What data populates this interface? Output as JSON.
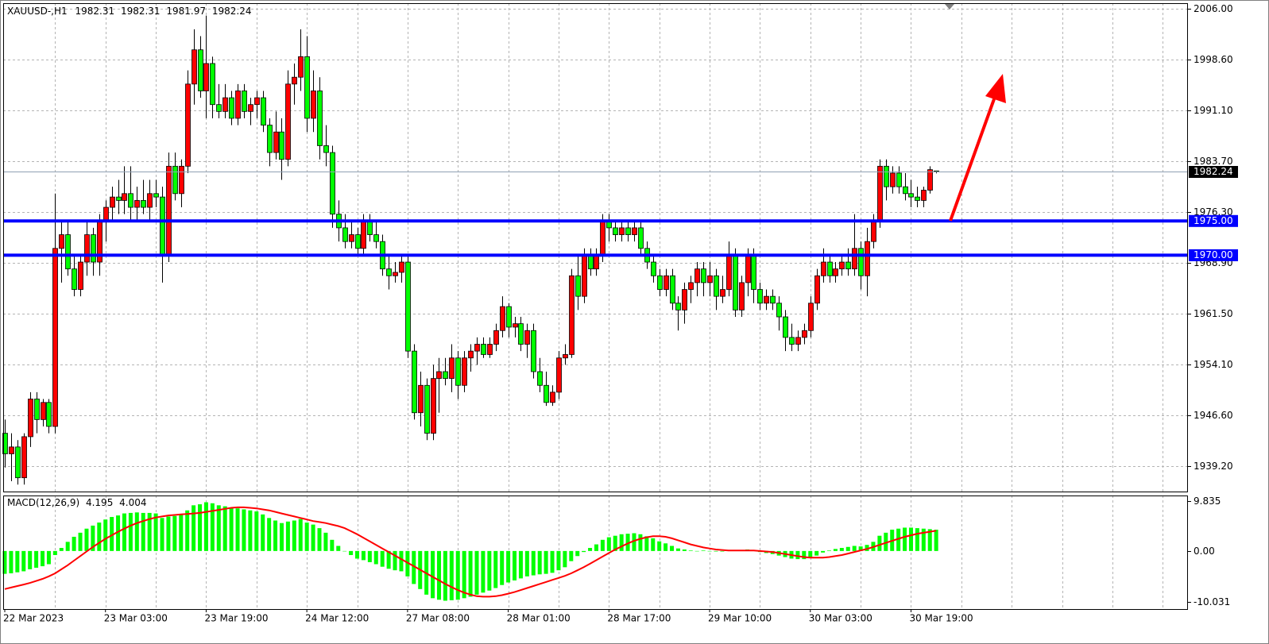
{
  "chart_data": {
    "type": "candlestick",
    "symbol_label": "XAUUSD-,H1",
    "up_color": "#ff0000",
    "down_color": "#00ff00",
    "grid": true,
    "ylim": [
      1935.49,
      2006.81
    ],
    "yticks": [
      {
        "value": 2006,
        "label": "2006.00"
      },
      {
        "value": 1998.6,
        "label": "1998.60"
      },
      {
        "value": 1991.1,
        "label": "1991.10"
      },
      {
        "value": 1983.7,
        "label": "1983.70"
      },
      {
        "value": 1976.3,
        "label": "1976.30"
      },
      {
        "value": 1968.9,
        "label": "1968.90"
      },
      {
        "value": 1961.5,
        "label": "1961.50"
      },
      {
        "value": 1954.1,
        "label": "1954.10"
      },
      {
        "value": 1946.6,
        "label": "1946.60"
      },
      {
        "value": 1939.2,
        "label": "1939.20"
      }
    ],
    "levels": [
      {
        "value": 1975,
        "label": "1975.00",
        "color": "#0000ff"
      },
      {
        "value": 1970,
        "label": "1970.00",
        "color": "#0000ff"
      }
    ],
    "categories": [
      "22 Mar 2023",
      null,
      null,
      null,
      null,
      null,
      null,
      null,
      null,
      null,
      null,
      null,
      null,
      null,
      null,
      null,
      "23 Mar 03:00",
      null,
      null,
      null,
      null,
      null,
      null,
      null,
      null,
      null,
      null,
      null,
      null,
      null,
      null,
      null,
      "23 Mar 19:00",
      null,
      null,
      null,
      null,
      null,
      null,
      null,
      null,
      null,
      null,
      null,
      null,
      null,
      null,
      null,
      "24 Mar 12:00",
      null,
      null,
      null,
      null,
      null,
      null,
      null,
      null,
      null,
      null,
      null,
      null,
      null,
      null,
      null,
      "27 Mar 08:00",
      null,
      null,
      null,
      null,
      null,
      null,
      null,
      null,
      null,
      null,
      null,
      null,
      null,
      null,
      null,
      "28 Mar 01:00",
      null,
      null,
      null,
      null,
      null,
      null,
      null,
      null,
      null,
      null,
      null,
      null,
      null,
      null,
      null,
      "28 Mar 17:00",
      null,
      null,
      null,
      null,
      null,
      null,
      null,
      null,
      null,
      null,
      null,
      null,
      null,
      null,
      null,
      "29 Mar 10:00",
      null,
      null,
      null,
      null,
      null,
      null,
      null,
      null,
      null,
      null,
      null,
      null,
      null,
      null,
      null,
      "30 Mar 03:00",
      null,
      null,
      null,
      null,
      null,
      null,
      null,
      null,
      null,
      null,
      null,
      null,
      null,
      null,
      null,
      "30 Mar 19:00",
      null,
      null,
      null,
      null
    ],
    "ohlc": [
      [
        1944,
        1946,
        1939,
        1941
      ],
      [
        1941,
        1944,
        1937,
        1942
      ],
      [
        1942,
        1943,
        1936.5,
        1937.5
      ],
      [
        1937.5,
        1944,
        1936.5,
        1943.5
      ],
      [
        1943.5,
        1950,
        1942,
        1949
      ],
      [
        1949,
        1950,
        1944,
        1946
      ],
      [
        1946,
        1949,
        1945,
        1948.5
      ],
      [
        1948.5,
        1949,
        1944,
        1945
      ],
      [
        1945,
        1979,
        1944,
        1971
      ],
      [
        1971,
        1975,
        1966,
        1973
      ],
      [
        1973,
        1975,
        1967,
        1968
      ],
      [
        1968,
        1970,
        1964,
        1965
      ],
      [
        1965,
        1970,
        1964,
        1969
      ],
      [
        1969,
        1975,
        1967,
        1973
      ],
      [
        1973,
        1974,
        1967,
        1969
      ],
      [
        1969,
        1976,
        1967,
        1975
      ],
      [
        1975,
        1978,
        1972,
        1977
      ],
      [
        1977,
        1980,
        1975,
        1978.5
      ],
      [
        1978.5,
        1981,
        1976,
        1978
      ],
      [
        1978,
        1983,
        1976,
        1979
      ],
      [
        1979,
        1983,
        1975,
        1977
      ],
      [
        1977,
        1980,
        1975,
        1978
      ],
      [
        1978,
        1981,
        1976,
        1977
      ],
      [
        1977,
        1981,
        1975,
        1979
      ],
      [
        1979,
        1981,
        1977,
        1978.5
      ],
      [
        1978.5,
        1980,
        1966,
        1970
      ],
      [
        1970,
        1985,
        1969,
        1983
      ],
      [
        1983,
        1985,
        1978,
        1979
      ],
      [
        1979,
        1984,
        1977,
        1983
      ],
      [
        1983,
        1997,
        1982,
        1995
      ],
      [
        1995,
        2003,
        1992,
        2000
      ],
      [
        2000,
        2002,
        1993,
        1994
      ],
      [
        1994,
        2005,
        1990,
        1998
      ],
      [
        1998,
        1999,
        1990,
        1992
      ],
      [
        1992,
        1995,
        1990,
        1991
      ],
      [
        1991,
        1995,
        1990,
        1993
      ],
      [
        1993,
        1994,
        1989,
        1990
      ],
      [
        1990,
        1995,
        1989,
        1994
      ],
      [
        1994,
        1995,
        1990,
        1991
      ],
      [
        1991,
        1993,
        1989,
        1992
      ],
      [
        1992,
        1994,
        1990,
        1993
      ],
      [
        1993,
        1994,
        1988,
        1989
      ],
      [
        1989,
        1990,
        1983,
        1985
      ],
      [
        1985,
        1991,
        1984,
        1988
      ],
      [
        1988,
        1990,
        1981,
        1984
      ],
      [
        1984,
        1997,
        1983,
        1995
      ],
      [
        1995,
        1998,
        1992,
        1996
      ],
      [
        1996,
        2003,
        1994,
        1999
      ],
      [
        1999,
        2002,
        1988,
        1990
      ],
      [
        1990,
        1997,
        1988,
        1994
      ],
      [
        1994,
        1996,
        1984,
        1986
      ],
      [
        1986,
        1989,
        1983,
        1985
      ],
      [
        1985,
        1986,
        1974,
        1976
      ],
      [
        1976,
        1978,
        1972,
        1974
      ],
      [
        1974,
        1976,
        1971,
        1972
      ],
      [
        1972,
        1975,
        1971,
        1973
      ],
      [
        1973,
        1974,
        1970,
        1971
      ],
      [
        1971,
        1976,
        1970,
        1975
      ],
      [
        1975,
        1976,
        1972,
        1973
      ],
      [
        1973,
        1975,
        1971,
        1972
      ],
      [
        1972,
        1973,
        1967,
        1968
      ],
      [
        1968,
        1970,
        1965,
        1967
      ],
      [
        1967,
        1969,
        1966,
        1967.5
      ],
      [
        1967.5,
        1970,
        1966,
        1969
      ],
      [
        1969,
        1970,
        1955,
        1956
      ],
      [
        1956,
        1957,
        1946,
        1947
      ],
      [
        1947,
        1953,
        1945,
        1951
      ],
      [
        1951,
        1952,
        1943,
        1944
      ],
      [
        1944,
        1954,
        1943,
        1952
      ],
      [
        1952,
        1955,
        1947,
        1953
      ],
      [
        1953,
        1955,
        1951,
        1952
      ],
      [
        1952,
        1957,
        1950,
        1955
      ],
      [
        1955,
        1956,
        1949,
        1951
      ],
      [
        1951,
        1956,
        1950,
        1955
      ],
      [
        1955,
        1957,
        1953,
        1956
      ],
      [
        1956,
        1958,
        1954,
        1957
      ],
      [
        1957,
        1958,
        1955,
        1955.5
      ],
      [
        1955.5,
        1958,
        1955,
        1957
      ],
      [
        1957,
        1960,
        1956,
        1959
      ],
      [
        1959,
        1964,
        1958,
        1962.5
      ],
      [
        1962.5,
        1963,
        1958,
        1959.5
      ],
      [
        1959.5,
        1961,
        1958,
        1960
      ],
      [
        1960,
        1961,
        1956,
        1957
      ],
      [
        1957,
        1960,
        1955,
        1959
      ],
      [
        1959,
        1960,
        1952,
        1953
      ],
      [
        1953,
        1955,
        1950,
        1951
      ],
      [
        1951,
        1953,
        1948,
        1948.5
      ],
      [
        1948.5,
        1951,
        1948,
        1950
      ],
      [
        1950,
        1956,
        1949,
        1955
      ],
      [
        1955,
        1957,
        1954,
        1955.5
      ],
      [
        1955.5,
        1968,
        1955,
        1967
      ],
      [
        1967,
        1970,
        1962,
        1964
      ],
      [
        1964,
        1971,
        1963,
        1970
      ],
      [
        1970,
        1971,
        1967,
        1968
      ],
      [
        1968,
        1971,
        1967,
        1970
      ],
      [
        1970,
        1976,
        1969,
        1975
      ],
      [
        1975,
        1976,
        1972,
        1974
      ],
      [
        1974,
        1975,
        1972,
        1973
      ],
      [
        1973,
        1975,
        1972,
        1974
      ],
      [
        1974,
        1975,
        1972,
        1973
      ],
      [
        1973,
        1975,
        1972,
        1974
      ],
      [
        1974,
        1975,
        1970,
        1971
      ],
      [
        1971,
        1972,
        1968,
        1969
      ],
      [
        1969,
        1970,
        1966,
        1967
      ],
      [
        1967,
        1968,
        1964,
        1965
      ],
      [
        1965,
        1968,
        1964,
        1967
      ],
      [
        1967,
        1968,
        1962,
        1963
      ],
      [
        1963,
        1964,
        1959,
        1962
      ],
      [
        1962,
        1966,
        1960,
        1965
      ],
      [
        1965,
        1967,
        1963,
        1966
      ],
      [
        1966,
        1969,
        1964,
        1968
      ],
      [
        1968,
        1969,
        1964,
        1966
      ],
      [
        1966,
        1969,
        1964,
        1967
      ],
      [
        1967,
        1968,
        1962,
        1964
      ],
      [
        1964,
        1967,
        1963,
        1965
      ],
      [
        1965,
        1972,
        1964,
        1970
      ],
      [
        1970,
        1971,
        1961,
        1962
      ],
      [
        1962,
        1967,
        1961,
        1966
      ],
      [
        1966,
        1971,
        1964,
        1970
      ],
      [
        1970,
        1971,
        1963,
        1965
      ],
      [
        1965,
        1966,
        1962,
        1963
      ],
      [
        1963,
        1965,
        1962,
        1964
      ],
      [
        1964,
        1965,
        1962,
        1963
      ],
      [
        1963,
        1964,
        1959,
        1961
      ],
      [
        1961,
        1962,
        1956,
        1958
      ],
      [
        1958,
        1960,
        1956,
        1957
      ],
      [
        1957,
        1959,
        1956,
        1958
      ],
      [
        1958,
        1960,
        1957,
        1959
      ],
      [
        1959,
        1964,
        1958,
        1963
      ],
      [
        1963,
        1968,
        1962,
        1967
      ],
      [
        1967,
        1971,
        1966,
        1969
      ],
      [
        1969,
        1970,
        1966,
        1967
      ],
      [
        1967,
        1969,
        1966,
        1968
      ],
      [
        1968,
        1970,
        1967,
        1969
      ],
      [
        1969,
        1971,
        1967,
        1968
      ],
      [
        1968,
        1976,
        1967,
        1971
      ],
      [
        1971,
        1972,
        1965,
        1967
      ],
      [
        1967,
        1974,
        1964,
        1972
      ],
      [
        1972,
        1976,
        1971,
        1975
      ],
      [
        1975,
        1984,
        1974,
        1983
      ],
      [
        1983,
        1984,
        1978,
        1980
      ],
      [
        1980,
        1983,
        1979,
        1982
      ],
      [
        1982,
        1983,
        1979,
        1980
      ],
      [
        1980,
        1982,
        1978,
        1979
      ],
      [
        1979,
        1981,
        1977,
        1978.5
      ],
      [
        1978.5,
        1980,
        1977,
        1978
      ],
      [
        1978,
        1980,
        1977,
        1979.5
      ],
      [
        1979.5,
        1983,
        1979,
        1982.5
      ],
      [
        1982.31,
        1982.31,
        1981.97,
        1982.24
      ]
    ],
    "indicator": {
      "type": "macd",
      "name": "MACD(12,26,9)",
      "main_color": "#00ff00",
      "signal_color": "#ff0000",
      "ylim": [
        -11.44,
        10.93
      ],
      "yticks": [
        9.835,
        {
          "value": 0,
          "label": "0.00"
        },
        -10.031
      ],
      "main": [
        -4.5,
        -4.4,
        -4.2,
        -4.0,
        -3.6,
        -3.3,
        -3.0,
        -2.6,
        -0.8,
        0.6,
        1.8,
        2.8,
        3.6,
        4.4,
        5.0,
        5.6,
        6.2,
        6.7,
        7.0,
        7.4,
        7.5,
        7.6,
        7.5,
        7.5,
        7.4,
        6.5,
        6.8,
        6.9,
        7.1,
        8.0,
        9.0,
        9.2,
        9.6,
        9.4,
        9.0,
        8.8,
        8.5,
        8.4,
        8.2,
        8.0,
        7.8,
        7.2,
        6.5,
        6.0,
        5.5,
        5.8,
        6.0,
        6.3,
        5.6,
        5.2,
        4.5,
        3.6,
        2.2,
        1.0,
        0.0,
        -0.8,
        -1.5,
        -1.8,
        -2.2,
        -2.6,
        -3.1,
        -3.5,
        -3.8,
        -4.0,
        -5.0,
        -6.5,
        -7.5,
        -8.6,
        -9.3,
        -9.6,
        -9.8,
        -9.7,
        -9.6,
        -9.3,
        -9.0,
        -8.6,
        -8.2,
        -7.8,
        -7.3,
        -6.7,
        -6.2,
        -5.8,
        -5.4,
        -5.0,
        -4.8,
        -4.6,
        -4.5,
        -4.3,
        -3.8,
        -3.2,
        -2.0,
        -1.0,
        -0.2,
        0.6,
        1.3,
        2.2,
        2.7,
        3.0,
        3.3,
        3.4,
        3.5,
        3.3,
        2.9,
        2.5,
        1.9,
        1.5,
        1.0,
        0.5,
        0.3,
        0.1,
        0.0,
        0.1,
        0.0,
        -0.1,
        -0.1,
        0.2,
        0.1,
        0.1,
        0.3,
        0.1,
        -0.2,
        -0.4,
        -0.6,
        -0.9,
        -1.2,
        -1.5,
        -1.6,
        -1.6,
        -1.4,
        -0.9,
        -0.3,
        0.1,
        0.4,
        0.6,
        0.8,
        1.0,
        0.9,
        1.2,
        1.8,
        3.0,
        3.6,
        4.2,
        4.4,
        4.6,
        4.6,
        4.5,
        4.4,
        4.3,
        4.195
      ],
      "signal": [
        -7.5,
        -7.2,
        -6.9,
        -6.6,
        -6.3,
        -5.9,
        -5.5,
        -5.0,
        -4.4,
        -3.6,
        -2.8,
        -1.9,
        -1.0,
        -0.1,
        0.8,
        1.6,
        2.4,
        3.1,
        3.8,
        4.4,
        5.0,
        5.5,
        5.9,
        6.3,
        6.6,
        6.8,
        7.0,
        7.1,
        7.2,
        7.3,
        7.4,
        7.5,
        7.7,
        7.9,
        8.1,
        8.3,
        8.5,
        8.6,
        8.6,
        8.5,
        8.4,
        8.2,
        8.0,
        7.7,
        7.4,
        7.1,
        6.8,
        6.5,
        6.2,
        5.9,
        5.7,
        5.5,
        5.2,
        4.9,
        4.5,
        3.9,
        3.3,
        2.6,
        1.9,
        1.2,
        0.5,
        -0.2,
        -0.9,
        -1.6,
        -2.3,
        -3.0,
        -3.7,
        -4.4,
        -5.1,
        -5.8,
        -6.5,
        -7.1,
        -7.7,
        -8.2,
        -8.6,
        -8.9,
        -9.0,
        -9.0,
        -8.9,
        -8.7,
        -8.4,
        -8.1,
        -7.7,
        -7.3,
        -6.9,
        -6.5,
        -6.1,
        -5.7,
        -5.3,
        -4.9,
        -4.4,
        -3.8,
        -3.2,
        -2.5,
        -1.8,
        -1.1,
        -0.4,
        0.3,
        0.9,
        1.5,
        2.0,
        2.4,
        2.7,
        2.9,
        2.9,
        2.8,
        2.5,
        2.1,
        1.7,
        1.3,
        1.0,
        0.7,
        0.5,
        0.3,
        0.2,
        0.1,
        0.1,
        0.1,
        0.1,
        0.1,
        0.0,
        -0.1,
        -0.2,
        -0.4,
        -0.6,
        -0.8,
        -1.0,
        -1.2,
        -1.3,
        -1.3,
        -1.3,
        -1.2,
        -1.0,
        -0.8,
        -0.5,
        -0.2,
        0.1,
        0.4,
        0.8,
        1.2,
        1.6,
        2.0,
        2.4,
        2.8,
        3.1,
        3.4,
        3.6,
        3.8,
        4.004
      ]
    }
  }
}
